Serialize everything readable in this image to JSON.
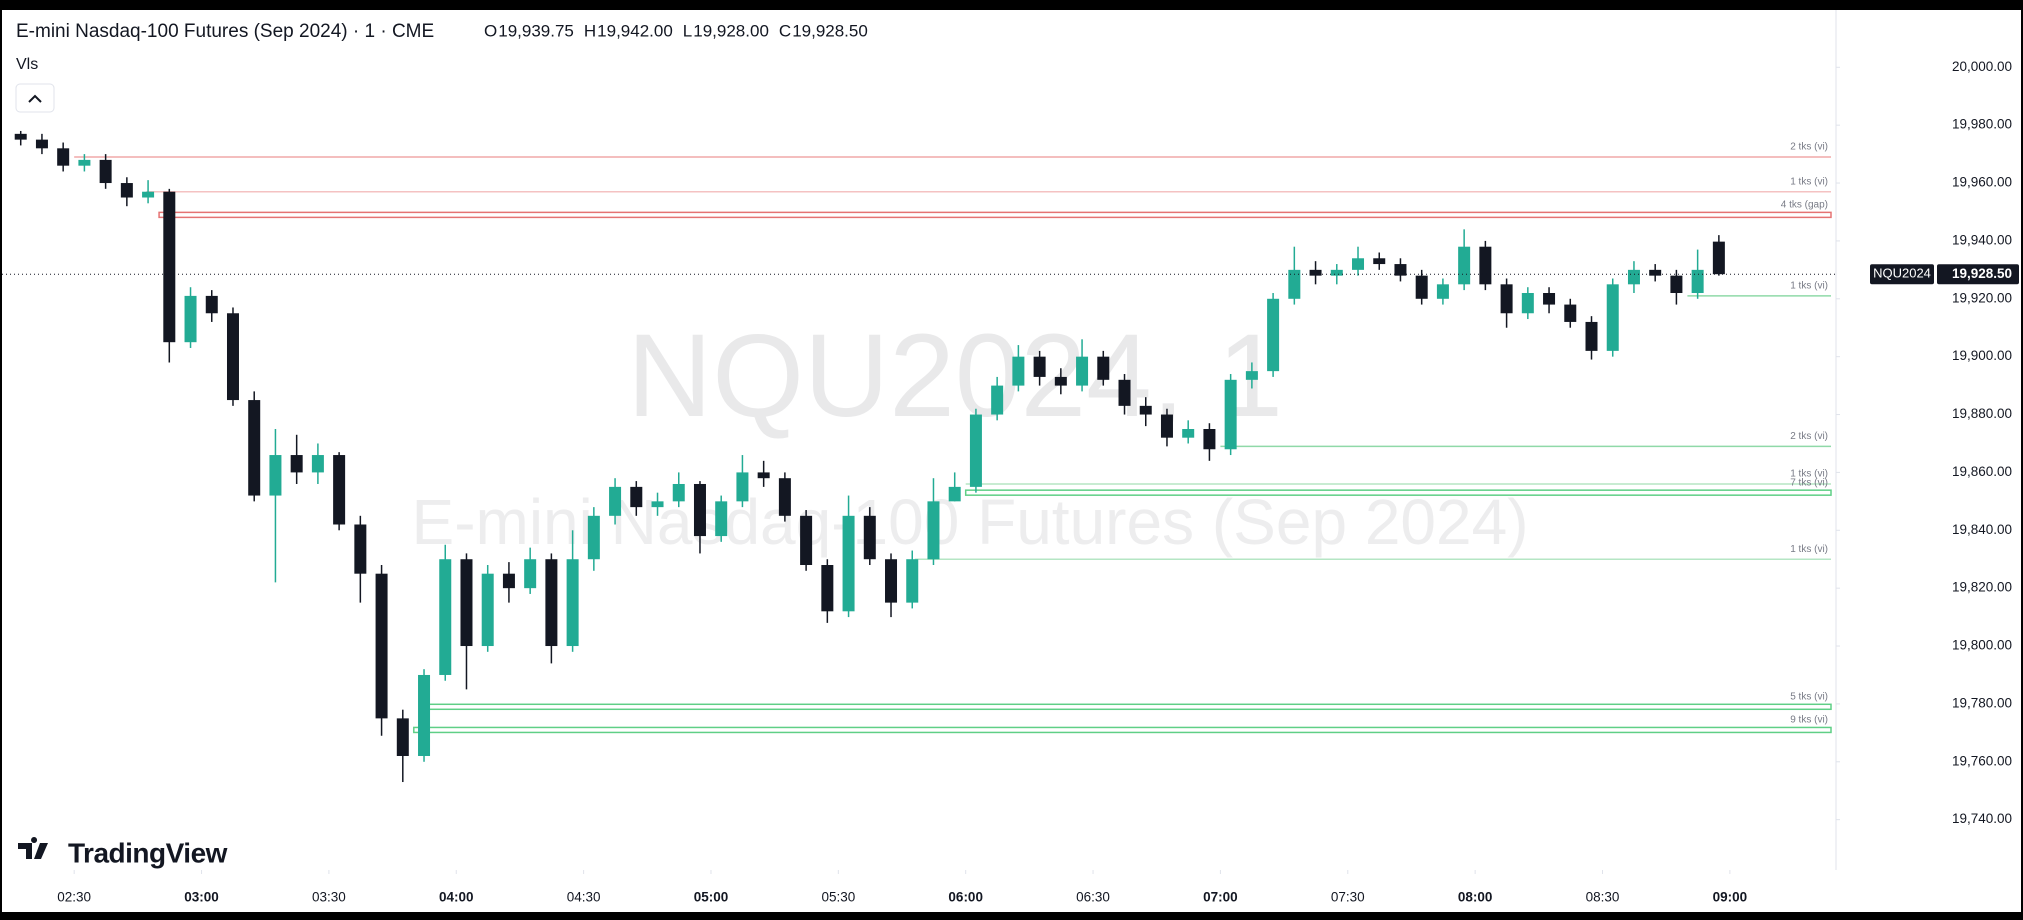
{
  "chart_data": {
    "type": "candlestick",
    "title": "E-mini Nasdaq-100 Futures (Sep 2024) · 1 · CME",
    "ohlc_labels": [
      "O",
      "H",
      "L",
      "C"
    ],
    "ohlc": [
      {
        "value": 19939.75,
        "label": "19,939.75"
      },
      {
        "value": 19942,
        "label": "19,942.00"
      },
      {
        "value": 19928,
        "label": "19,928.00"
      },
      {
        "value": 19928.5,
        "label": "19,928.50"
      }
    ],
    "indicator": "Vls",
    "watermark": "NQU2024, 1",
    "watermark_subtitle": "E-mini Nasdaq-100 Futures (Sep 2024)",
    "symbol": "NQU2024",
    "last_price": {
      "value": 19928.5,
      "label": "19,928.50"
    },
    "logo": "TradingView",
    "up_color": "#22ab94",
    "down_color": "#131722",
    "x": [
      "02:20",
      "02:25",
      "02:30",
      "02:35",
      "02:40",
      "02:45",
      "02:50",
      "02:55",
      "03:00",
      "03:05",
      "03:10",
      "03:15",
      "03:20",
      "03:25",
      "03:30",
      "03:35",
      "03:40",
      "03:45",
      "03:50",
      "03:55",
      "04:00",
      "04:05",
      "04:10",
      "04:15",
      "04:20",
      "04:25",
      "04:30",
      "04:35",
      "04:40",
      "04:45",
      "04:50",
      "04:55",
      "05:00",
      "05:05",
      "05:10",
      "05:15",
      "05:20",
      "05:25",
      "05:30",
      "05:35",
      "05:40",
      "05:45",
      "05:50",
      "05:55",
      "06:00",
      "06:05",
      "06:10",
      "06:15",
      "06:20",
      "06:25",
      "06:30",
      "06:35",
      "06:40",
      "06:45",
      "06:50",
      "06:55",
      "07:00",
      "07:05",
      "07:10",
      "07:15",
      "07:20",
      "07:25",
      "07:30",
      "07:35",
      "07:40",
      "07:45",
      "07:50",
      "07:55",
      "08:00",
      "08:05",
      "08:10",
      "08:15",
      "08:20",
      "08:25",
      "08:30",
      "08:35",
      "08:40",
      "08:45",
      "08:50",
      "08:55",
      "09:00"
    ],
    "open": [
      19977,
      19975,
      19972,
      19966,
      19968,
      19960,
      19955,
      19957,
      19905,
      19921,
      19915,
      19885,
      19852,
      19866,
      19860,
      19866,
      19842,
      19825,
      19775,
      19762,
      19790,
      19830,
      19800,
      19825,
      19820,
      19830,
      19800,
      19830,
      19845,
      19855,
      19848,
      19850,
      19856,
      19838,
      19850,
      19860,
      19858,
      19845,
      19828,
      19812,
      19845,
      19830,
      19815,
      19830,
      19850,
      19855,
      19880,
      19890,
      19900,
      19893,
      19890,
      19900,
      19892,
      19883,
      19880,
      19872,
      19875,
      19868,
      19892,
      19895,
      19920,
      19930,
      19928,
      19930,
      19934,
      19932,
      19928,
      19920,
      19925,
      19938,
      19925,
      19915,
      19922,
      19918,
      19912,
      19902,
      19925,
      19930,
      19928,
      19922,
      19939.75
    ],
    "high": [
      19978,
      19977,
      19974,
      19970,
      19970,
      19962,
      19961,
      19958,
      19924,
      19923,
      19917,
      19888,
      19875,
      19873,
      19870,
      19867,
      19845,
      19828,
      19778,
      19792,
      19835,
      19832,
      19828,
      19829,
      19834,
      19832,
      19840,
      19848,
      19858,
      19857,
      19853,
      19860,
      19857,
      19852,
      19866,
      19864,
      19860,
      19847,
      19830,
      19852,
      19848,
      19832,
      19833,
      19858,
      19860,
      19882,
      19893,
      19904,
      19902,
      19896,
      19906,
      19902,
      19894,
      19886,
      19882,
      19878,
      19877,
      19894,
      19898,
      19922,
      19938,
      19933,
      19932,
      19938,
      19936,
      19934,
      19930,
      19927,
      19944,
      19940,
      19927,
      19924,
      19924,
      19920,
      19914,
      19927,
      19933,
      19932,
      19930,
      19937,
      19942
    ],
    "low": [
      19973,
      19970,
      19964,
      19964,
      19958,
      19952,
      19953,
      19898,
      19903,
      19912,
      19883,
      19850,
      19822,
      19856,
      19856,
      19840,
      19815,
      19769,
      19753,
      19760,
      19788,
      19785,
      19798,
      19815,
      19818,
      19794,
      19798,
      19826,
      19842,
      19845,
      19845,
      19848,
      19832,
      19836,
      19848,
      19855,
      19843,
      19826,
      19808,
      19810,
      19828,
      19810,
      19813,
      19828,
      19850,
      19853,
      19878,
      19888,
      19890,
      19887,
      19888,
      19890,
      19880,
      19876,
      19869,
      19870,
      19864,
      19866,
      19889,
      19893,
      19918,
      19925,
      19925,
      19928,
      19930,
      19926,
      19918,
      19918,
      19923,
      19923,
      19910,
      19913,
      19915,
      19910,
      19899,
      19900,
      19922,
      19926,
      19918,
      19920,
      19928
    ],
    "close": [
      19975,
      19972,
      19966,
      19968,
      19960,
      19955,
      19957,
      19905,
      19921,
      19915,
      19885,
      19852,
      19866,
      19860,
      19866,
      19842,
      19825,
      19775,
      19762,
      19790,
      19830,
      19800,
      19825,
      19820,
      19830,
      19800,
      19830,
      19845,
      19855,
      19848,
      19850,
      19856,
      19838,
      19850,
      19860,
      19858,
      19845,
      19828,
      19812,
      19845,
      19830,
      19815,
      19830,
      19850,
      19855,
      19880,
      19890,
      19900,
      19893,
      19890,
      19900,
      19892,
      19883,
      19880,
      19872,
      19875,
      19868,
      19892,
      19895,
      19920,
      19930,
      19928,
      19930,
      19934,
      19932,
      19928,
      19920,
      19925,
      19938,
      19925,
      19915,
      19922,
      19918,
      19912,
      19902,
      19925,
      19930,
      19928,
      19922,
      19930,
      19928.5
    ],
    "xlim": [
      "02:13",
      "09:25"
    ],
    "xticks": [
      "02:30",
      "03:00",
      "03:30",
      "04:00",
      "04:30",
      "05:00",
      "05:30",
      "06:00",
      "06:30",
      "07:00",
      "07:30",
      "08:00",
      "08:30",
      "09:00"
    ],
    "ylim": [
      19722.6,
      20019.8
    ],
    "yticks": [
      {
        "value": 19740,
        "label": "19,740.00"
      },
      {
        "value": 19760,
        "label": "19,760.00"
      },
      {
        "value": 19780,
        "label": "19,780.00"
      },
      {
        "value": 19800,
        "label": "19,800.00"
      },
      {
        "value": 19820,
        "label": "19,820.00"
      },
      {
        "value": 19840,
        "label": "19,840.00"
      },
      {
        "value": 19860,
        "label": "19,860.00"
      },
      {
        "value": 19880,
        "label": "19,880.00"
      },
      {
        "value": 19900,
        "label": "19,900.00"
      },
      {
        "value": 19920,
        "label": "19,920.00"
      },
      {
        "value": 19940,
        "label": "19,940.00"
      },
      {
        "value": 19960,
        "label": "19,960.00"
      },
      {
        "value": 19980,
        "label": "19,980.00"
      },
      {
        "value": 20000,
        "label": "20,000.00"
      }
    ],
    "levels": [
      {
        "price": 19969,
        "label": "2 tks (vi)",
        "start": "02:30",
        "color": "#f0a8a8",
        "style": "line"
      },
      {
        "price": 19957,
        "label": "1 tks (vi)",
        "start": "02:47",
        "color": "#f4c2c2",
        "style": "line"
      },
      {
        "price": 19949,
        "label": "4 tks (gap)",
        "start": "02:50",
        "color": "#e57373",
        "style": "band"
      },
      {
        "price": 19921,
        "label": "1 tks (vi)",
        "start": "08:50",
        "color": "#8fd9a8",
        "style": "line"
      },
      {
        "price": 19869,
        "label": "2 tks (vi)",
        "start": "07:00",
        "color": "#8fd9a8",
        "style": "line"
      },
      {
        "price": 19856,
        "label": "1 tks (vi)",
        "start": "06:00",
        "color": "#b5e6c4",
        "style": "line"
      },
      {
        "price": 19853,
        "label": "7 tks (vi)",
        "start": "06:00",
        "color": "#5fcf86",
        "style": "band"
      },
      {
        "price": 19830,
        "label": "1 tks (vi)",
        "start": "05:48",
        "color": "#b5e6c4",
        "style": "line"
      },
      {
        "price": 19779,
        "label": "5 tks (vi)",
        "start": "03:52",
        "color": "#5fcf86",
        "style": "band"
      },
      {
        "price": 19771,
        "label": "9 tks (vi)",
        "start": "03:50",
        "color": "#5fcf86",
        "style": "band"
      }
    ]
  }
}
